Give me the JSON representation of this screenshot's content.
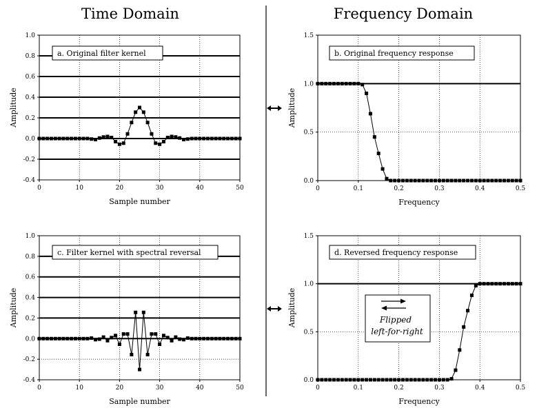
{
  "headings": {
    "time": "Time Domain",
    "frequency": "Frequency Domain"
  },
  "note": {
    "line1": "Flipped",
    "line2": "left-for-right"
  },
  "chart_data": [
    {
      "id": "a",
      "type": "line",
      "annotation": "a.  Original filter kernel",
      "xlabel": "Sample number",
      "ylabel": "Amplitude",
      "xlim": [
        0,
        50
      ],
      "ylim": [
        -0.4,
        1.0
      ],
      "xticks": [
        0,
        10,
        20,
        30,
        40,
        50
      ],
      "yticks": [
        -0.4,
        -0.2,
        0.0,
        0.2,
        0.4,
        0.6,
        0.8,
        1.0
      ],
      "yticklabels": [
        "-0.4",
        "-0.2",
        "0.0",
        "0.2",
        "0.4",
        "0.6",
        "0.8",
        "1.0"
      ],
      "heavy_y": [
        -0.2,
        0.0,
        0.2,
        0.4,
        0.6,
        0.8
      ],
      "x": [
        0,
        1,
        2,
        3,
        4,
        5,
        6,
        7,
        8,
        9,
        10,
        11,
        12,
        13,
        14,
        15,
        16,
        17,
        18,
        19,
        20,
        21,
        22,
        23,
        24,
        25,
        26,
        27,
        28,
        29,
        30,
        31,
        32,
        33,
        34,
        35,
        36,
        37,
        38,
        39,
        40,
        41,
        42,
        43,
        44,
        45,
        46,
        47,
        48,
        49,
        50
      ],
      "y": [
        0,
        0,
        0,
        0,
        0,
        0,
        0,
        0,
        0,
        0,
        0,
        0,
        0,
        -0.005,
        -0.01,
        0.005,
        0.015,
        0.02,
        0.01,
        -0.03,
        -0.055,
        -0.045,
        0.045,
        0.155,
        0.255,
        0.3,
        0.255,
        0.155,
        0.045,
        -0.045,
        -0.055,
        -0.03,
        0.01,
        0.02,
        0.015,
        0.005,
        -0.01,
        -0.005,
        0,
        0,
        0,
        0,
        0,
        0,
        0,
        0,
        0,
        0,
        0,
        0,
        0
      ]
    },
    {
      "id": "b",
      "type": "line",
      "annotation": "b.  Original frequency response",
      "xlabel": "Frequency",
      "ylabel": "Amplitude",
      "xlim": [
        0,
        0.5
      ],
      "ylim": [
        0,
        1.5
      ],
      "xticks": [
        0,
        0.1,
        0.2,
        0.3,
        0.4,
        0.5
      ],
      "xticklabels": [
        "0",
        "0.1",
        "0.2",
        "0.3",
        "0.4",
        "0.5"
      ],
      "yticks": [
        0,
        0.5,
        1.0,
        1.5
      ],
      "yticklabels": [
        "0.0",
        "0.5",
        "1.0",
        "1.5"
      ],
      "heavy_y": [
        1.0
      ],
      "x": [
        0,
        0.01,
        0.02,
        0.03,
        0.04,
        0.05,
        0.06,
        0.07,
        0.08,
        0.09,
        0.1,
        0.11,
        0.12,
        0.13,
        0.14,
        0.15,
        0.16,
        0.17,
        0.18,
        0.19,
        0.2,
        0.21,
        0.22,
        0.23,
        0.24,
        0.25,
        0.26,
        0.27,
        0.28,
        0.29,
        0.3,
        0.31,
        0.32,
        0.33,
        0.34,
        0.35,
        0.36,
        0.37,
        0.38,
        0.39,
        0.4,
        0.41,
        0.42,
        0.43,
        0.44,
        0.45,
        0.46,
        0.47,
        0.48,
        0.49,
        0.5
      ],
      "y": [
        1,
        1,
        1,
        1,
        1,
        1,
        1,
        1,
        1,
        1,
        1,
        0.99,
        0.9,
        0.69,
        0.45,
        0.28,
        0.12,
        0.02,
        0,
        0,
        0,
        0,
        0,
        0,
        0,
        0,
        0,
        0,
        0,
        0,
        0,
        0,
        0,
        0,
        0,
        0,
        0,
        0,
        0,
        0,
        0,
        0,
        0,
        0,
        0,
        0,
        0,
        0,
        0,
        0,
        0
      ]
    },
    {
      "id": "c",
      "type": "line",
      "annotation": "c.  Filter kernel with spectral reversal",
      "xlabel": "Sample number",
      "ylabel": "Amplitude",
      "xlim": [
        0,
        50
      ],
      "ylim": [
        -0.4,
        1.0
      ],
      "xticks": [
        0,
        10,
        20,
        30,
        40,
        50
      ],
      "yticks": [
        -0.4,
        -0.2,
        0.0,
        0.2,
        0.4,
        0.6,
        0.8,
        1.0
      ],
      "yticklabels": [
        "-0.4",
        "-0.2",
        "0.0",
        "0.2",
        "0.4",
        "0.6",
        "0.8",
        "1.0"
      ],
      "heavy_y": [
        0.0,
        0.2,
        0.4,
        0.6,
        0.8
      ],
      "x": [
        0,
        1,
        2,
        3,
        4,
        5,
        6,
        7,
        8,
        9,
        10,
        11,
        12,
        13,
        14,
        15,
        16,
        17,
        18,
        19,
        20,
        21,
        22,
        23,
        24,
        25,
        26,
        27,
        28,
        29,
        30,
        31,
        32,
        33,
        34,
        35,
        36,
        37,
        38,
        39,
        40,
        41,
        42,
        43,
        44,
        45,
        46,
        47,
        48,
        49,
        50
      ],
      "y": [
        0,
        0,
        0,
        0,
        0,
        0,
        0,
        0,
        0,
        0,
        0,
        0,
        0,
        0.005,
        -0.01,
        -0.005,
        0.015,
        -0.02,
        0.01,
        0.03,
        -0.055,
        0.045,
        0.045,
        -0.155,
        0.255,
        -0.3,
        0.255,
        -0.155,
        0.045,
        0.045,
        -0.055,
        0.03,
        0.01,
        -0.02,
        0.015,
        -0.005,
        -0.01,
        0.005,
        0,
        0,
        0,
        0,
        0,
        0,
        0,
        0,
        0,
        0,
        0,
        0,
        0
      ]
    },
    {
      "id": "d",
      "type": "line",
      "annotation": "d.  Reversed frequency response",
      "xlabel": "Frequency",
      "ylabel": "Amplitude",
      "xlim": [
        0,
        0.5
      ],
      "ylim": [
        0,
        1.5
      ],
      "xticks": [
        0,
        0.1,
        0.2,
        0.3,
        0.4,
        0.5
      ],
      "xticklabels": [
        "0",
        "0.1",
        "0.2",
        "0.3",
        "0.4",
        "0.5"
      ],
      "yticks": [
        0,
        0.5,
        1.0,
        1.5
      ],
      "yticklabels": [
        "0.0",
        "0.5",
        "1.0",
        "1.5"
      ],
      "heavy_y": [
        1.0
      ],
      "x": [
        0,
        0.01,
        0.02,
        0.03,
        0.04,
        0.05,
        0.06,
        0.07,
        0.08,
        0.09,
        0.1,
        0.11,
        0.12,
        0.13,
        0.14,
        0.15,
        0.16,
        0.17,
        0.18,
        0.19,
        0.2,
        0.21,
        0.22,
        0.23,
        0.24,
        0.25,
        0.26,
        0.27,
        0.28,
        0.29,
        0.3,
        0.31,
        0.32,
        0.33,
        0.34,
        0.35,
        0.36,
        0.37,
        0.38,
        0.39,
        0.4,
        0.41,
        0.42,
        0.43,
        0.44,
        0.45,
        0.46,
        0.47,
        0.48,
        0.49,
        0.5
      ],
      "y": [
        0,
        0,
        0,
        0,
        0,
        0,
        0,
        0,
        0,
        0,
        0,
        0,
        0,
        0,
        0,
        0,
        0,
        0,
        0,
        0,
        0,
        0,
        0,
        0,
        0,
        0,
        0,
        0,
        0,
        0,
        0,
        0,
        0,
        0.01,
        0.1,
        0.31,
        0.55,
        0.72,
        0.88,
        0.98,
        1,
        1,
        1,
        1,
        1,
        1,
        1,
        1,
        1,
        1,
        1
      ]
    }
  ]
}
